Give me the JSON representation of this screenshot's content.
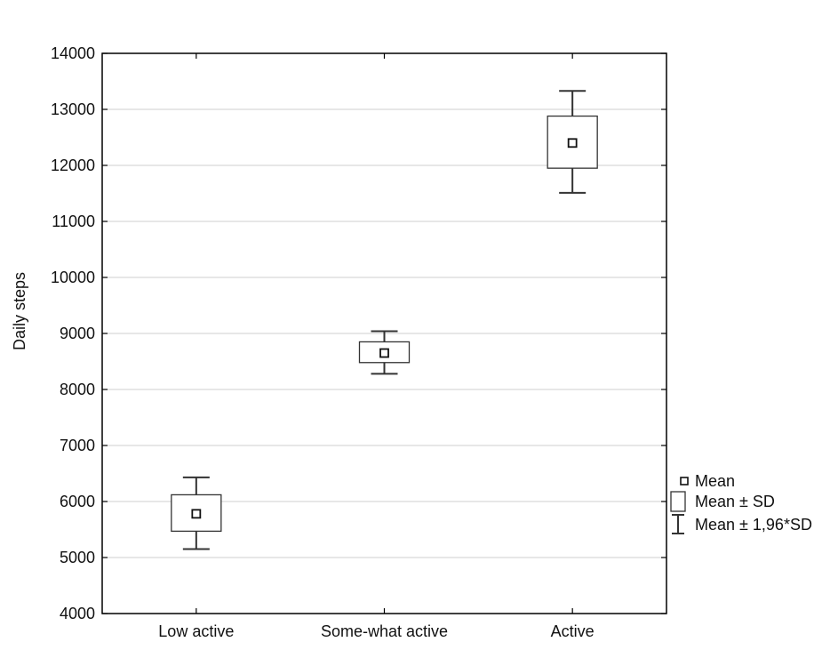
{
  "chart_data": {
    "type": "box",
    "title": "",
    "xlabel": "",
    "ylabel": "Daily steps",
    "ylim": [
      4000,
      14000
    ],
    "yticks": [
      4000,
      5000,
      6000,
      7000,
      8000,
      9000,
      10000,
      11000,
      12000,
      13000,
      14000
    ],
    "grid": true,
    "legend_position": "right-bottom",
    "categories": [
      "Low active",
      "Some-what active",
      "Active"
    ],
    "series": [
      {
        "mean": [
          5780,
          8650,
          12400
        ],
        "sd_low": [
          5470,
          8480,
          11950
        ],
        "sd_high": [
          6120,
          8850,
          12880
        ],
        "ci_low": [
          5150,
          8280,
          11510
        ],
        "ci_high": [
          6430,
          9040,
          13330
        ]
      }
    ],
    "legend": [
      {
        "symbol": "mean-marker",
        "label": "Mean"
      },
      {
        "symbol": "sd-box",
        "label": "Mean ± SD"
      },
      {
        "symbol": "whisker",
        "label": "Mean ± 1,96*SD"
      }
    ]
  }
}
